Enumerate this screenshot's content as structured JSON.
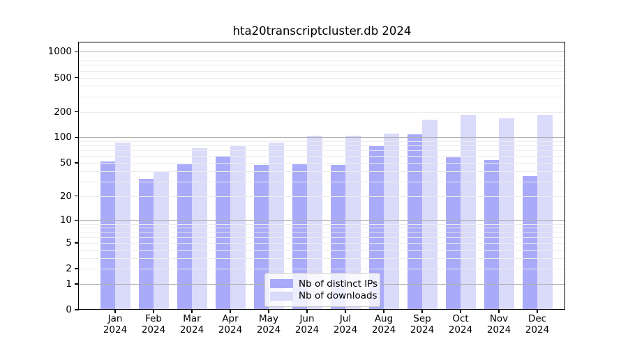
{
  "title": "hta20transcriptcluster.db 2024",
  "chart_data": {
    "type": "bar",
    "title": "hta20transcriptcluster.db 2024",
    "y_scale": "log10(1+v)",
    "ylim": [
      0,
      1282
    ],
    "grid": "on",
    "legend_position": "bottom-center",
    "categories": [
      "Jan",
      "Feb",
      "Mar",
      "Apr",
      "May",
      "Jun",
      "Jul",
      "Aug",
      "Sep",
      "Oct",
      "Nov",
      "Dec"
    ],
    "category_sublabel": "2024",
    "series": [
      {
        "name": "Nb of distinct IPs",
        "color": "#aaaafa",
        "values": [
          52,
          32,
          48,
          61,
          47,
          48,
          47,
          79,
          108,
          58,
          54,
          35
        ]
      },
      {
        "name": "Nb of downloads",
        "color": "#dadafa",
        "values": [
          87,
          39,
          75,
          81,
          87,
          104,
          104,
          110,
          160,
          185,
          168,
          185
        ]
      }
    ],
    "y_ticks": [
      1000,
      500,
      200,
      100,
      50,
      20,
      10,
      5,
      2,
      1,
      0
    ],
    "grid_major_at": [
      1,
      10,
      100,
      1000
    ],
    "grid_minor_multipliers": [
      2,
      3,
      4,
      5,
      6,
      7,
      8,
      9
    ],
    "axis_colors": {
      "major_grid": "#b0b0b0",
      "minor_grid": "#ececec",
      "spine": "#000000",
      "text": "#000000"
    }
  }
}
